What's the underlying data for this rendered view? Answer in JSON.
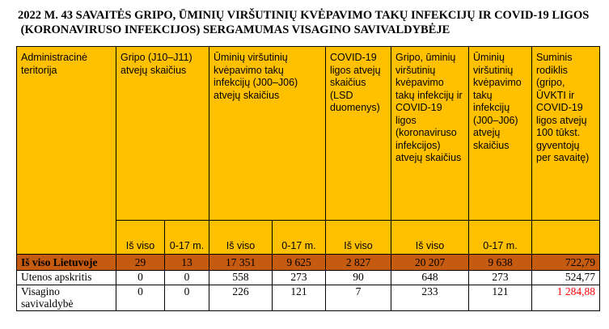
{
  "title": {
    "line1": "2022 M. 43 SAVAITĖS GRIPO, ŪMINIŲ VIRŠUTINIŲ KVĖPAVIMO TAKŲ INFEKCIJŲ IR COVID-19 LIGOS",
    "line2": " (KORONAVIRUSO INFEKCIJOS) SERGAMUMAS VISAGINO SAVIVALDYBĖJE"
  },
  "headers": {
    "territory": "Administracinė teritorija",
    "flu": "Gripo (J10–J11) atvejų skaičius",
    "uri": "Ūminių viršutinių kvėpavimo takų infekcijų (J00–J06) atvejų skaičius",
    "covid": "COVID-19 ligos atvejų skaičius (LSD duomenys)",
    "combined": "Gripo, ūminių viršutinių kvėpavimo takų infekcijų ir COVID-19 ligos (koronaviruso infekcijos) atvejų skaičius",
    "uri_child": "Ūminių viršutinių kvėpavimo takų infekcijų (J00–J06) atvejų skaičius",
    "index": "Suminis rodiklis (gripo, ŪVKTI ir COVID-19 ligos atvejų 100 tūkst. gyventojų per savaitę)"
  },
  "subheaders": {
    "flu_total": "Iš viso",
    "flu_child": "0-17 m.",
    "uri_total": "Iš viso",
    "uri_child": "0-17 m.",
    "covid_total": "Iš viso",
    "combined_total": "Iš viso",
    "uri_child2": "0-17 m."
  },
  "rows": [
    {
      "label": "Iš viso Lietuvoje",
      "flu_total": "29",
      "flu_child": "13",
      "uri_total": "17 351",
      "uri_child": "9 625",
      "covid": "2 827",
      "combined": "20 207",
      "uri_child2": "9 638",
      "index": "722,79"
    },
    {
      "label": "Utenos apskritis",
      "flu_total": "0",
      "flu_child": "0",
      "uri_total": "558",
      "uri_child": "273",
      "covid": "90",
      "combined": "648",
      "uri_child2": "273",
      "index": "524,77"
    },
    {
      "label": "Visagino savivaldybė",
      "flu_total": "0",
      "flu_child": "0",
      "uri_total": "226",
      "uri_child": "121",
      "covid": "7",
      "combined": "233",
      "uri_child2": "121",
      "index": "1 284,88"
    }
  ],
  "colors": {
    "header_bg": "#FFC000",
    "total_row_bg": "#C55A11",
    "highlight_text": "#FF0000"
  }
}
